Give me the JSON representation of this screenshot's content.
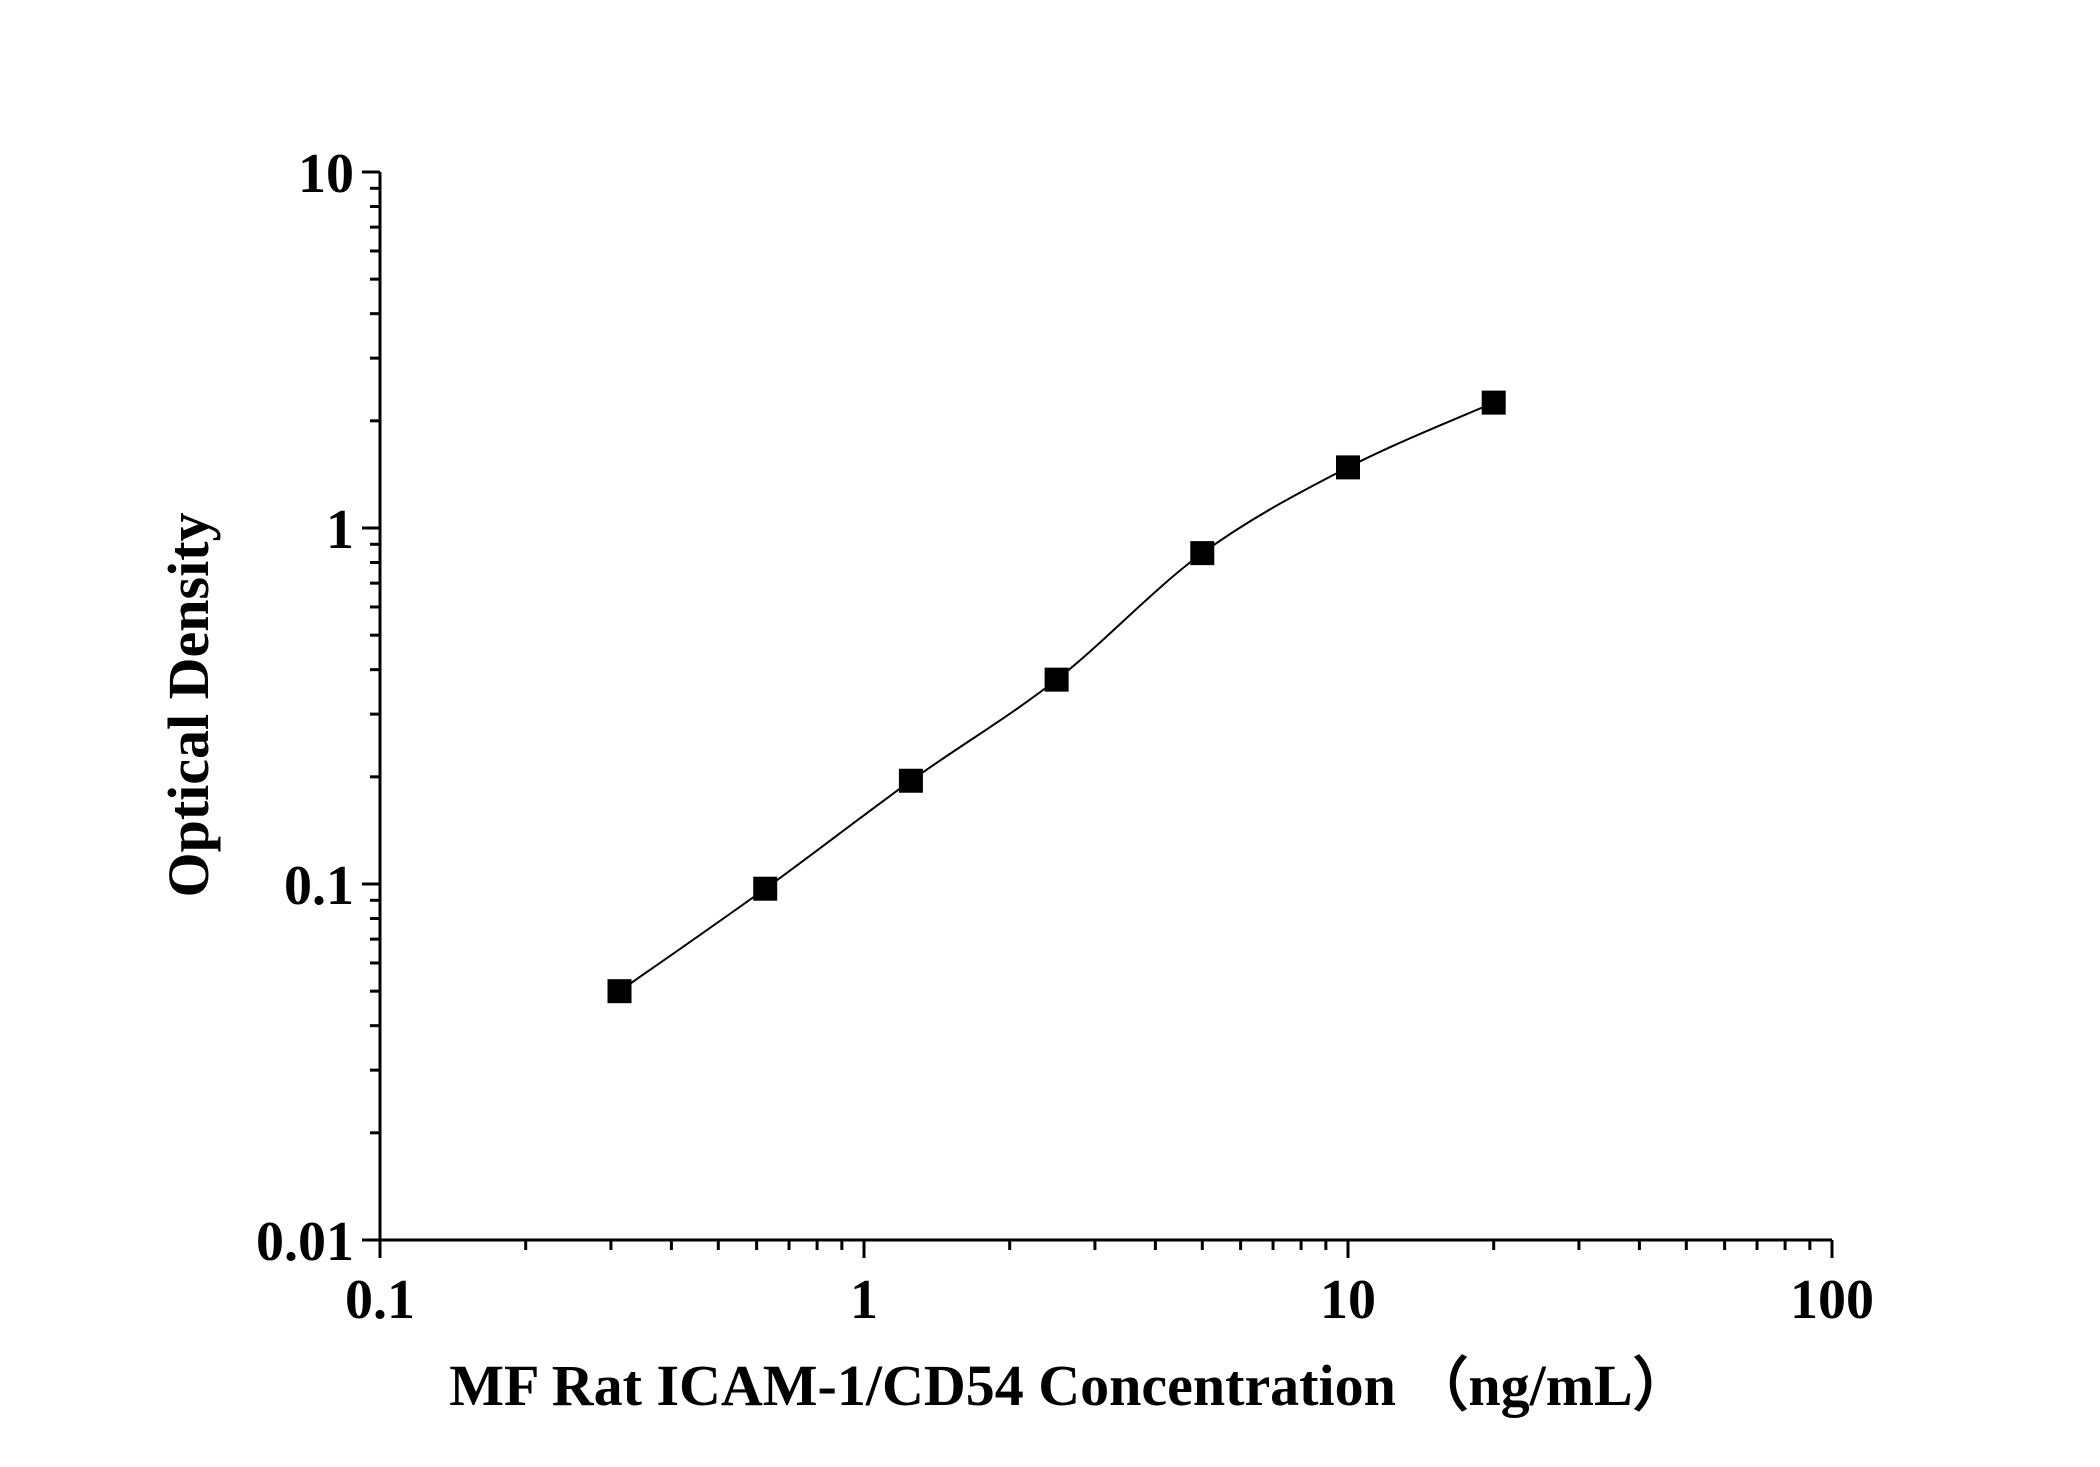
{
  "chart_data": {
    "type": "scatter",
    "title": "",
    "xlabel": "MF Rat ICAM-1/CD54 Concentration （ng/mL）",
    "ylabel": "Optical Density",
    "xscale": "log",
    "yscale": "log",
    "xlim": [
      0.1,
      100
    ],
    "ylim": [
      0.01,
      10
    ],
    "xticks": [
      {
        "value": 0.1,
        "label": "0.1"
      },
      {
        "value": 1,
        "label": "1"
      },
      {
        "value": 10,
        "label": "10"
      },
      {
        "value": 100,
        "label": "100"
      }
    ],
    "yticks": [
      {
        "value": 0.01,
        "label": "0.01"
      },
      {
        "value": 0.1,
        "label": "0.1"
      },
      {
        "value": 1,
        "label": "1"
      },
      {
        "value": 10,
        "label": "10"
      }
    ],
    "grid": false,
    "legend": "none",
    "series": [
      {
        "marker": "square",
        "color": "#000000",
        "x": [
          0.3125,
          0.625,
          1.25,
          2.5,
          5,
          10,
          20
        ],
        "y": [
          0.05,
          0.097,
          0.195,
          0.375,
          0.85,
          1.48,
          2.25
        ]
      }
    ],
    "fit_curve": {
      "type": "line",
      "color": "#000000",
      "style": "smooth"
    }
  }
}
